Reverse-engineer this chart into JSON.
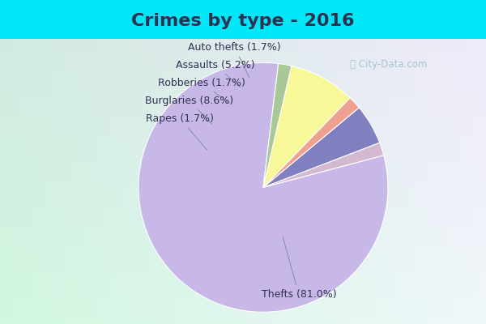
{
  "title": "Crimes by type - 2016",
  "labels": [
    "Thefts",
    "Auto thefts",
    "Assaults",
    "Robberies",
    "Burglaries",
    "Rapes"
  ],
  "percentages": [
    81.0,
    1.7,
    5.2,
    1.7,
    8.6,
    1.7
  ],
  "colors": [
    "#c8b8e8",
    "#d4b8d0",
    "#8080c0",
    "#f0a090",
    "#f8f898",
    "#a8c898"
  ],
  "bg_cyan": "#00e8f8",
  "bg_main_tl": "#c8e8d8",
  "bg_main_br": "#d8e8f0",
  "title_color": "#303050",
  "title_fontsize": 16,
  "label_fontsize": 9,
  "startangle": 83,
  "annotation_data": [
    [
      "Auto thefts (1.7%)",
      [
        0.28,
        1.08
      ],
      [
        0.41,
        0.81
      ]
    ],
    [
      "Assaults (5.2%)",
      [
        0.12,
        0.93
      ],
      [
        0.34,
        0.73
      ]
    ],
    [
      "Robberies (1.7%)",
      [
        0.0,
        0.78
      ],
      [
        0.25,
        0.6
      ]
    ],
    [
      "Burglaries (8.6%)",
      [
        -0.1,
        0.63
      ],
      [
        0.1,
        0.42
      ]
    ],
    [
      "Rapes (1.7%)",
      [
        -0.18,
        0.48
      ],
      [
        0.06,
        0.2
      ]
    ],
    [
      "Thefts (81.0%)",
      [
        0.82,
        -1.0
      ],
      [
        0.68,
        -0.5
      ]
    ]
  ]
}
